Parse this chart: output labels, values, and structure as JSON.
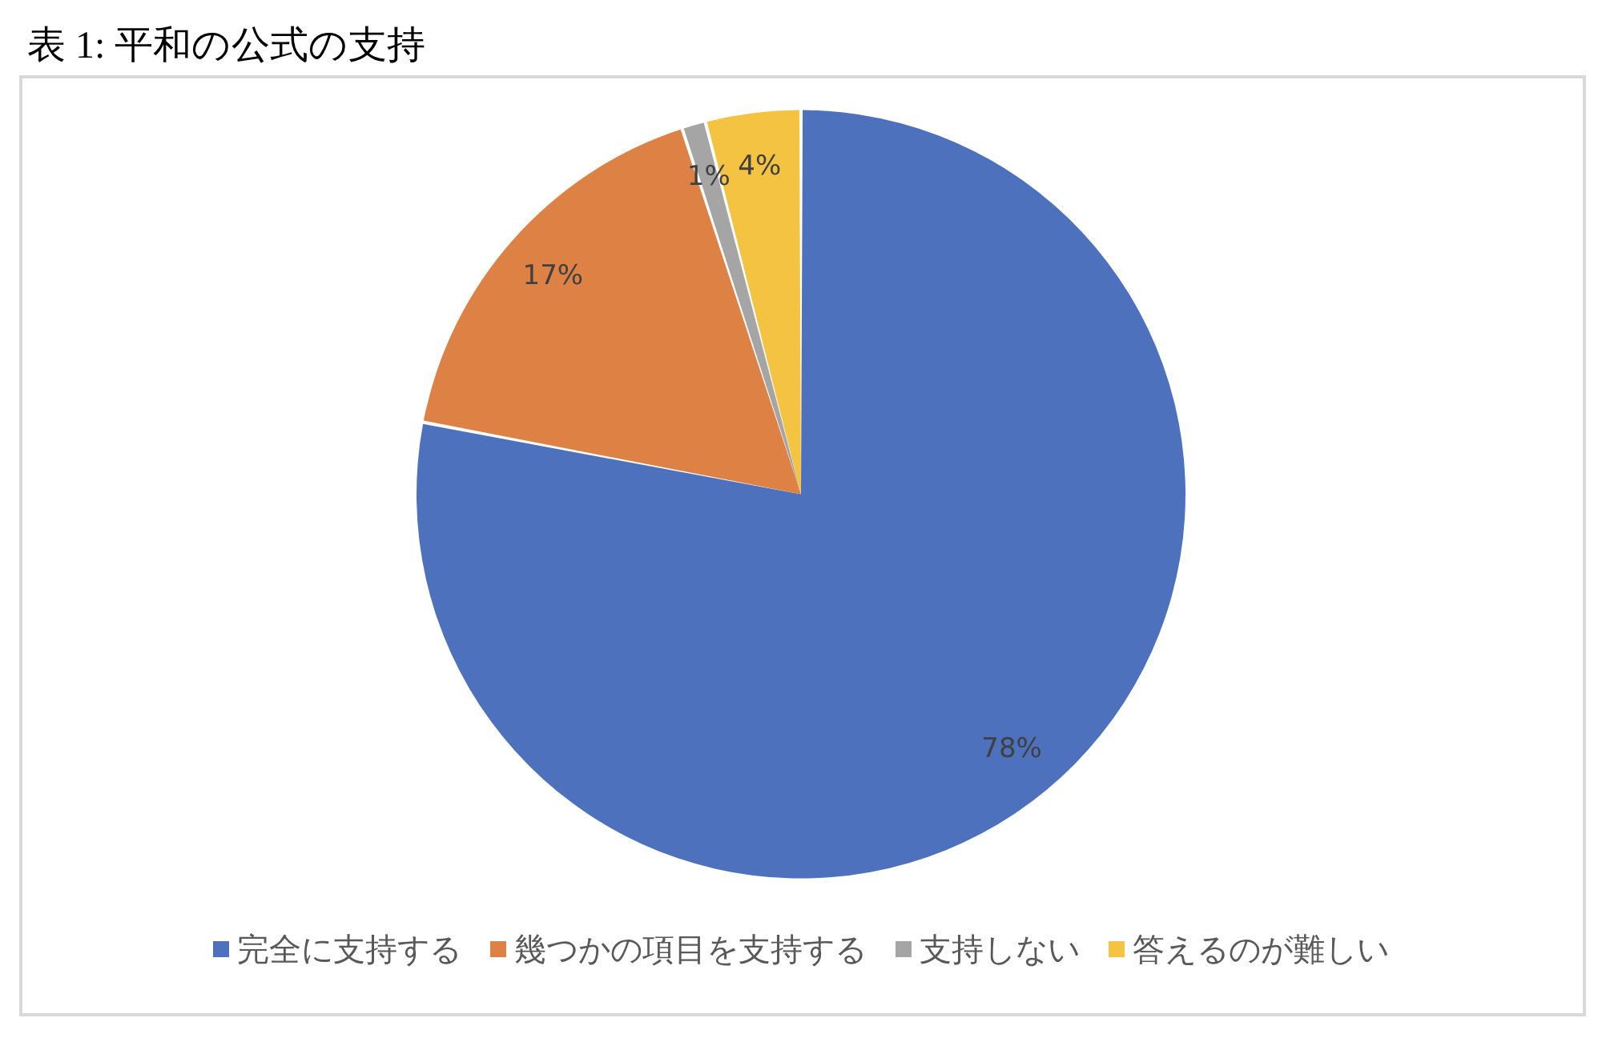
{
  "chart_data": {
    "type": "pie",
    "title": "表 1: 平和の公式の支持",
    "categories": [
      "完全に支持する",
      "幾つかの項目を支持する",
      "支持しない",
      "答えるのが難しい"
    ],
    "values": [
      78,
      17,
      1,
      4
    ],
    "colors": [
      "#4e71be",
      "#dd8144",
      "#a5a5a5",
      "#f5c342"
    ],
    "value_labels": [
      "78%",
      "17%",
      "1%",
      "4%"
    ],
    "legend": "bottom"
  }
}
